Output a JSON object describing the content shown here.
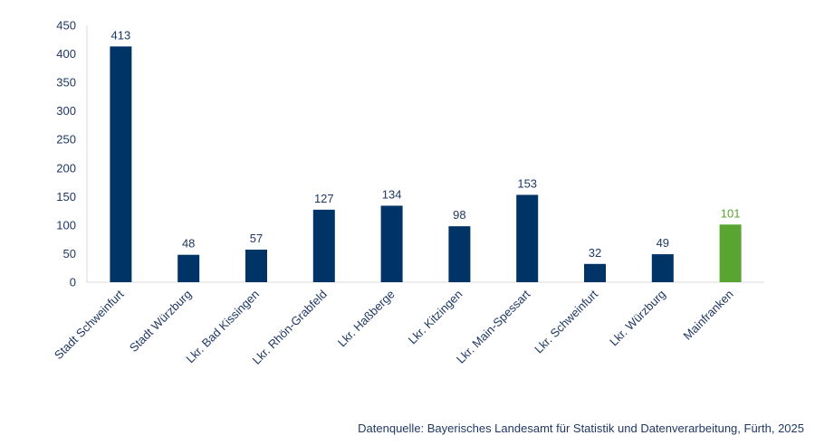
{
  "chart_data": {
    "type": "bar",
    "categories": [
      "Stadt Schweinfurt",
      "Stadt Würzburg",
      "Lkr. Bad Kissingen",
      "Lkr. Rhön-Grabfeld",
      "Lkr. Haßberge",
      "Lkr. Kitzingen",
      "Lkr. Main-Spessart",
      "Lkr. Schweinfurt",
      "Lkr. Würzburg",
      "Mainfranken"
    ],
    "values": [
      413,
      48,
      57,
      127,
      134,
      98,
      153,
      32,
      49,
      101
    ],
    "data_labels": [
      "413",
      "48",
      "57",
      "127",
      "134",
      "98",
      "153",
      "32",
      "49",
      "101"
    ],
    "colors": [
      "#003366",
      "#003366",
      "#003366",
      "#003366",
      "#003366",
      "#003366",
      "#003366",
      "#003366",
      "#003366",
      "#58a531"
    ],
    "label_colors": [
      "#1f3864",
      "#1f3864",
      "#1f3864",
      "#1f3864",
      "#1f3864",
      "#1f3864",
      "#1f3864",
      "#1f3864",
      "#1f3864",
      "#58a531"
    ],
    "ylim": [
      0,
      450
    ],
    "yticks": [
      0,
      50,
      100,
      150,
      200,
      250,
      300,
      350,
      400,
      450
    ],
    "grid": false,
    "legend": "none"
  },
  "source_text": "Datenquelle: Bayerisches Landesamt für Statistik und Datenverarbeitung, Fürth, 2025"
}
